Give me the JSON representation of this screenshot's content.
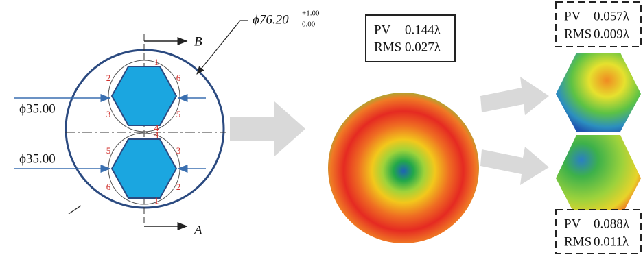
{
  "diagram": {
    "outer_diameter": {
      "symbol": "ϕ76.20",
      "upper_tol": "+1.00",
      "lower_tol": "0.00"
    },
    "section_labels": [
      "B",
      "A"
    ],
    "hexagon_diameters": [
      "ϕ35.00",
      "ϕ35.00"
    ],
    "upper_hexagon_labels": [
      "1",
      "2",
      "3",
      "4",
      "5",
      "6"
    ],
    "lower_hexagon_labels": [
      "4",
      "5",
      "6",
      "1",
      "2",
      "3"
    ],
    "full_aperture": {
      "pv_label": "PV",
      "pv": "0.144λ",
      "rms_label": "RMS",
      "rms": "0.027λ"
    },
    "upper_sub_aperture": {
      "pv_label": "PV",
      "pv": "0.057λ",
      "rms_label": "RMS",
      "rms": "0.009λ"
    },
    "lower_sub_aperture": {
      "pv_label": "PV",
      "pv": "0.088λ",
      "rms_label": "RMS",
      "rms": "0.011λ"
    }
  }
}
